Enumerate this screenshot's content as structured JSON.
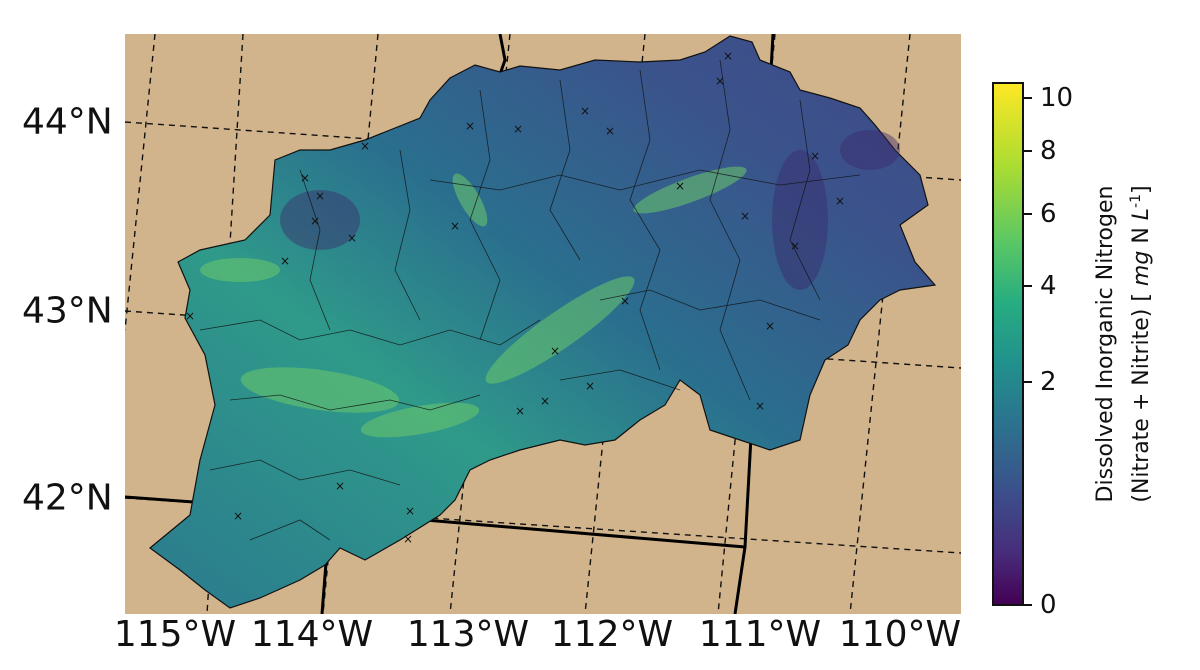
{
  "map": {
    "background_color": "#d2b48c",
    "outline_color": "#111111",
    "marker_symbol": "×",
    "lat_labels": [
      "44°N",
      "43°N",
      "42°N"
    ],
    "lon_labels": [
      "115°W",
      "114°W",
      "113°W",
      "112°W",
      "111°W",
      "110°W"
    ]
  },
  "colorbar": {
    "title_line1": "Dissolved Inorganic Nitrogen",
    "title_line2_prefix": "(Nitrate + Nitrite) [ ",
    "title_unit_mg": "mg",
    "title_unit_n": " N ",
    "title_unit_l": "L",
    "title_unit_exp": "-1",
    "title_suffix": "]",
    "ticks": [
      "10",
      "8",
      "6",
      "4",
      "2",
      "0"
    ],
    "colormap": "viridis",
    "scale": "nonlinear"
  }
}
